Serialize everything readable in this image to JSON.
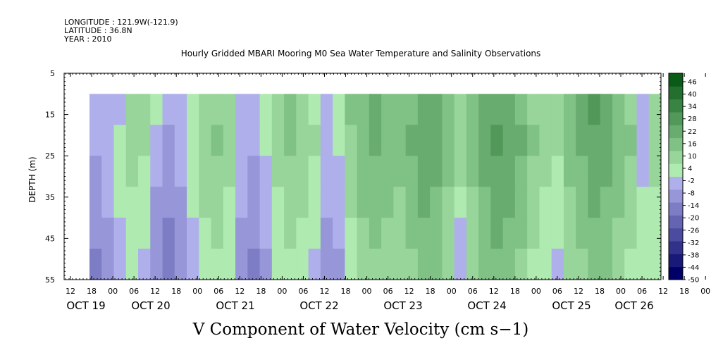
{
  "header": {
    "longitude": "LONGITUDE : 121.9W(-121.9)",
    "latitude": "LATITUDE : 36.8N",
    "year": "YEAR : 2010",
    "title": "Hourly Gridded MBARI Mooring M0 Sea Water Temperature and Salinity Observations"
  },
  "chart_data": {
    "type": "heatmap",
    "title": "Hourly Gridded MBARI Mooring M0 Sea Water Temperature and Salinity Observations",
    "xlabel": "",
    "ylabel": "DEPTH (m)",
    "variable_label": "V Component of Water Velocity (cm s−1)",
    "ylim": [
      5,
      55
    ],
    "y_ticks": [
      5,
      15,
      25,
      35,
      45,
      55
    ],
    "y_inverted": true,
    "data_depth_range": [
      10,
      55
    ],
    "hour_ticks": [
      "12",
      "18",
      "00",
      "06",
      "12",
      "18",
      "00",
      "06",
      "12",
      "18",
      "00",
      "06",
      "12",
      "18",
      "00",
      "06",
      "12",
      "18",
      "00",
      "06",
      "12",
      "18",
      "00",
      "06",
      "12",
      "18",
      "00",
      "06",
      "12",
      "18",
      "00",
      "06"
    ],
    "date_ticks": [
      "OCT 19",
      "OCT 20",
      "OCT 21",
      "OCT 22",
      "OCT 23",
      "OCT 24",
      "OCT 25",
      "OCT 26"
    ],
    "colorbar": {
      "levels": [
        -50,
        -44,
        -38,
        -32,
        -26,
        -20,
        -14,
        -8,
        -2,
        4,
        10,
        16,
        22,
        28,
        34,
        40,
        46
      ],
      "labels": [
        "46",
        "40",
        "34",
        "28",
        "22",
        "16",
        "10",
        "4",
        "-2",
        "-8",
        "-14",
        "-20",
        "-26",
        "-32",
        "-38",
        "-44",
        "-50"
      ]
    },
    "colors": {
      "negative_light": "#aaaaf0",
      "negative_mid": "#8888e8",
      "near_zero": "#aaf0aa",
      "positive_light": "#66ee88",
      "positive_mid": "#22dd44",
      "positive_dark": "#0a6a1a",
      "negative_dark": "#000066"
    },
    "series": [
      {
        "name": "",
        "values": [
          -8,
          -4,
          2,
          6,
          4,
          -6,
          -10,
          -6,
          2,
          8,
          10,
          6,
          -4,
          -8,
          -2,
          6,
          10,
          8,
          4,
          -4,
          -2,
          8,
          14,
          16,
          14,
          12,
          16,
          20,
          18,
          14,
          8,
          12,
          18,
          22,
          20,
          16,
          10,
          6,
          4,
          12,
          16,
          20,
          18,
          14,
          10,
          -6,
          6
        ]
      }
    ],
    "series_rows": [
      [
        -6,
        -8,
        -4,
        4,
        6,
        2,
        -4,
        -8,
        -2,
        6,
        8,
        4,
        -4,
        -6,
        2,
        8,
        12,
        6,
        2,
        -4,
        0,
        10,
        14,
        16,
        12,
        10,
        14,
        18,
        16,
        12,
        6,
        10,
        16,
        20,
        18,
        14,
        8,
        4,
        6,
        14,
        18,
        22,
        16,
        12,
        8,
        -8,
        8
      ],
      [
        -8,
        -4,
        2,
        6,
        4,
        -6,
        -10,
        -6,
        2,
        8,
        10,
        6,
        -4,
        -8,
        -2,
        6,
        10,
        8,
        4,
        -4,
        -2,
        8,
        14,
        16,
        14,
        12,
        16,
        20,
        18,
        14,
        8,
        12,
        18,
        22,
        20,
        16,
        10,
        6,
        4,
        12,
        16,
        20,
        18,
        14,
        10,
        -6,
        6
      ],
      [
        -10,
        -6,
        0,
        4,
        2,
        -8,
        -12,
        -8,
        0,
        6,
        8,
        4,
        -6,
        -10,
        -4,
        4,
        8,
        6,
        2,
        -6,
        -4,
        6,
        12,
        14,
        12,
        10,
        14,
        18,
        16,
        10,
        4,
        10,
        16,
        20,
        18,
        14,
        8,
        4,
        2,
        10,
        14,
        18,
        16,
        12,
        8,
        -4,
        4
      ],
      [
        -12,
        -8,
        -2,
        2,
        0,
        -10,
        -14,
        -10,
        -2,
        4,
        6,
        2,
        -8,
        -12,
        -6,
        2,
        6,
        4,
        0,
        -8,
        -6,
        4,
        10,
        12,
        10,
        8,
        12,
        16,
        14,
        8,
        0,
        8,
        14,
        18,
        16,
        12,
        6,
        2,
        0,
        8,
        12,
        16,
        14,
        10,
        6,
        -2,
        2
      ],
      [
        -14,
        -10,
        -4,
        0,
        -2,
        -12,
        -16,
        -12,
        -4,
        2,
        4,
        0,
        -10,
        -14,
        -8,
        0,
        4,
        2,
        -2,
        -10,
        -8,
        2,
        8,
        10,
        8,
        6,
        10,
        14,
        12,
        6,
        -4,
        6,
        12,
        16,
        14,
        10,
        4,
        0,
        -2,
        6,
        10,
        14,
        12,
        8,
        4,
        0,
        0
      ],
      [
        -16,
        -12,
        -6,
        -2,
        -4,
        -14,
        -18,
        -14,
        -6,
        0,
        2,
        -2,
        -12,
        -16,
        -10,
        -2,
        2,
        0,
        -4,
        -12,
        -10,
        0,
        6,
        8,
        6,
        4,
        8,
        12,
        10,
        4,
        -8,
        4,
        10,
        14,
        12,
        8,
        2,
        -2,
        -4,
        4,
        8,
        12,
        10,
        6,
        2,
        2,
        -2
      ]
    ]
  },
  "labels": {
    "ylabel": "DEPTH (m)",
    "variable": "V Component of Water Velocity (cm s−1)"
  }
}
